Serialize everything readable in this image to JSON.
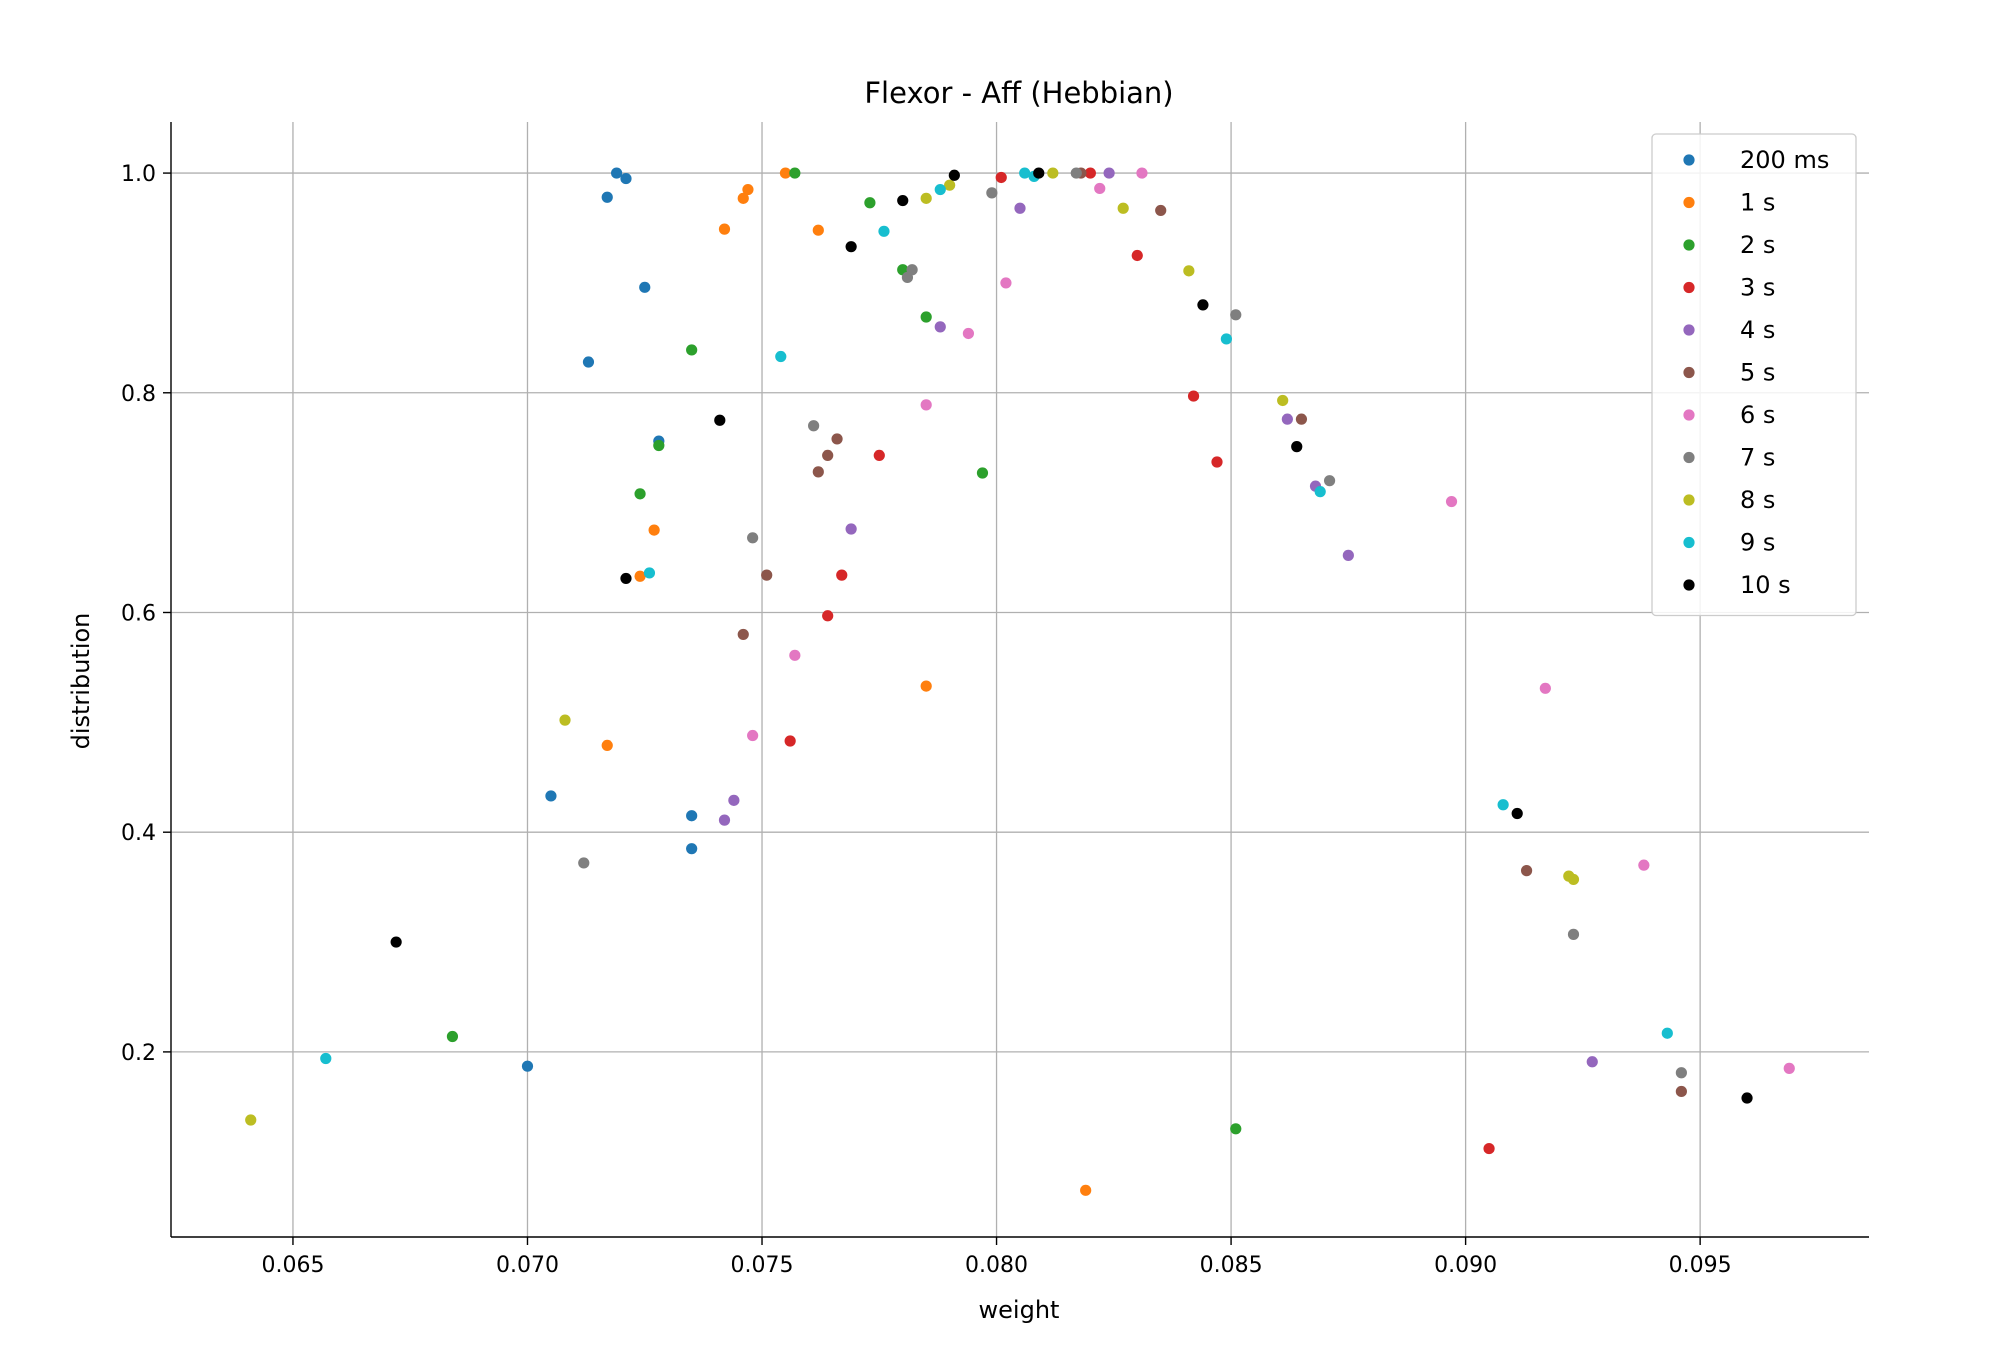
{
  "chart_data": {
    "type": "scatter",
    "title": "Flexor - Aff (Hebbian)",
    "xlabel": "weight",
    "ylabel": "distribution",
    "xlim": [
      0.0624,
      0.0986
    ],
    "ylim": [
      0.0315,
      1.0465
    ],
    "xticks": [
      0.065,
      0.07,
      0.075,
      0.08,
      0.085,
      0.09,
      0.095
    ],
    "xtick_labels": [
      "0.065",
      "0.070",
      "0.075",
      "0.080",
      "0.085",
      "0.090",
      "0.095"
    ],
    "yticks": [
      0.2,
      0.4,
      0.6,
      0.8,
      1.0
    ],
    "ytick_labels": [
      "0.2",
      "0.4",
      "0.6",
      "0.8",
      "1.0"
    ],
    "grid": true,
    "legend_position": "top-right",
    "series": [
      {
        "name": "200 ms",
        "color": "#1f77b4",
        "points": [
          [
            0.0719,
            1.0
          ],
          [
            0.0721,
            0.995
          ],
          [
            0.0717,
            0.978
          ],
          [
            0.0725,
            0.896
          ],
          [
            0.0713,
            0.828
          ],
          [
            0.0728,
            0.756
          ],
          [
            0.0705,
            0.433
          ],
          [
            0.0735,
            0.415
          ],
          [
            0.0735,
            0.385
          ],
          [
            0.07,
            0.187
          ]
        ]
      },
      {
        "name": "1 s",
        "color": "#ff7f0e",
        "points": [
          [
            0.0755,
            1.0
          ],
          [
            0.0747,
            0.985
          ],
          [
            0.0746,
            0.977
          ],
          [
            0.0742,
            0.949
          ],
          [
            0.0762,
            0.948
          ],
          [
            0.0727,
            0.675
          ],
          [
            0.0724,
            0.633
          ],
          [
            0.0785,
            0.533
          ],
          [
            0.0717,
            0.479
          ],
          [
            0.0819,
            0.074
          ]
        ]
      },
      {
        "name": "2 s",
        "color": "#2ca02c",
        "points": [
          [
            0.0757,
            1.0
          ],
          [
            0.0773,
            0.973
          ],
          [
            0.078,
            0.912
          ],
          [
            0.0785,
            0.869
          ],
          [
            0.0735,
            0.839
          ],
          [
            0.0728,
            0.752
          ],
          [
            0.0724,
            0.708
          ],
          [
            0.0797,
            0.727
          ],
          [
            0.0684,
            0.214
          ],
          [
            0.0851,
            0.13
          ]
        ]
      },
      {
        "name": "3 s",
        "color": "#d62728",
        "points": [
          [
            0.0801,
            0.996
          ],
          [
            0.082,
            1.0
          ],
          [
            0.083,
            0.925
          ],
          [
            0.0842,
            0.797
          ],
          [
            0.0847,
            0.737
          ],
          [
            0.0775,
            0.743
          ],
          [
            0.0767,
            0.634
          ],
          [
            0.0764,
            0.597
          ],
          [
            0.0756,
            0.483
          ],
          [
            0.0905,
            0.112
          ]
        ]
      },
      {
        "name": "4 s",
        "color": "#9467bd",
        "points": [
          [
            0.0824,
            1.0
          ],
          [
            0.0805,
            0.968
          ],
          [
            0.0788,
            0.86
          ],
          [
            0.0862,
            0.776
          ],
          [
            0.0868,
            0.715
          ],
          [
            0.0875,
            0.652
          ],
          [
            0.0769,
            0.676
          ],
          [
            0.0744,
            0.429
          ],
          [
            0.0742,
            0.411
          ],
          [
            0.0927,
            0.191
          ]
        ]
      },
      {
        "name": "5 s",
        "color": "#8c564b",
        "points": [
          [
            0.0818,
            1.0
          ],
          [
            0.0835,
            0.966
          ],
          [
            0.0865,
            0.776
          ],
          [
            0.0766,
            0.758
          ],
          [
            0.0764,
            0.743
          ],
          [
            0.0762,
            0.728
          ],
          [
            0.0751,
            0.634
          ],
          [
            0.0746,
            0.58
          ],
          [
            0.0913,
            0.365
          ],
          [
            0.0946,
            0.164
          ]
        ]
      },
      {
        "name": "6 s",
        "color": "#e377c2",
        "points": [
          [
            0.0831,
            1.0
          ],
          [
            0.0822,
            0.986
          ],
          [
            0.0802,
            0.9
          ],
          [
            0.0794,
            0.854
          ],
          [
            0.0785,
            0.789
          ],
          [
            0.0897,
            0.701
          ],
          [
            0.0757,
            0.561
          ],
          [
            0.0748,
            0.488
          ],
          [
            0.0917,
            0.531
          ],
          [
            0.0938,
            0.37
          ],
          [
            0.0969,
            0.185
          ]
        ]
      },
      {
        "name": "7 s",
        "color": "#7f7f7f",
        "points": [
          [
            0.0817,
            1.0
          ],
          [
            0.0799,
            0.982
          ],
          [
            0.0781,
            0.905
          ],
          [
            0.0782,
            0.912
          ],
          [
            0.0851,
            0.871
          ],
          [
            0.0761,
            0.77
          ],
          [
            0.0871,
            0.72
          ],
          [
            0.0748,
            0.668
          ],
          [
            0.0712,
            0.372
          ],
          [
            0.0923,
            0.307
          ],
          [
            0.0946,
            0.181
          ]
        ]
      },
      {
        "name": "8 s",
        "color": "#bcbd22",
        "points": [
          [
            0.0812,
            1.0
          ],
          [
            0.079,
            0.989
          ],
          [
            0.0785,
            0.977
          ],
          [
            0.0827,
            0.968
          ],
          [
            0.0841,
            0.911
          ],
          [
            0.0861,
            0.793
          ],
          [
            0.0708,
            0.502
          ],
          [
            0.0922,
            0.36
          ],
          [
            0.0923,
            0.357
          ],
          [
            0.0641,
            0.138
          ]
        ]
      },
      {
        "name": "9 s",
        "color": "#17becf",
        "points": [
          [
            0.0806,
            1.0
          ],
          [
            0.0808,
            0.997
          ],
          [
            0.0788,
            0.985
          ],
          [
            0.0776,
            0.947
          ],
          [
            0.0849,
            0.849
          ],
          [
            0.0754,
            0.833
          ],
          [
            0.0869,
            0.71
          ],
          [
            0.0726,
            0.636
          ],
          [
            0.0908,
            0.425
          ],
          [
            0.0943,
            0.217
          ],
          [
            0.0657,
            0.194
          ]
        ]
      },
      {
        "name": "10 s",
        "color": "#000000",
        "points": [
          [
            0.0809,
            1.0
          ],
          [
            0.0791,
            0.998
          ],
          [
            0.078,
            0.975
          ],
          [
            0.0769,
            0.933
          ],
          [
            0.0844,
            0.88
          ],
          [
            0.0741,
            0.775
          ],
          [
            0.0864,
            0.751
          ],
          [
            0.0721,
            0.631
          ],
          [
            0.0911,
            0.417
          ],
          [
            0.0672,
            0.3
          ],
          [
            0.096,
            0.158
          ]
        ]
      }
    ]
  }
}
